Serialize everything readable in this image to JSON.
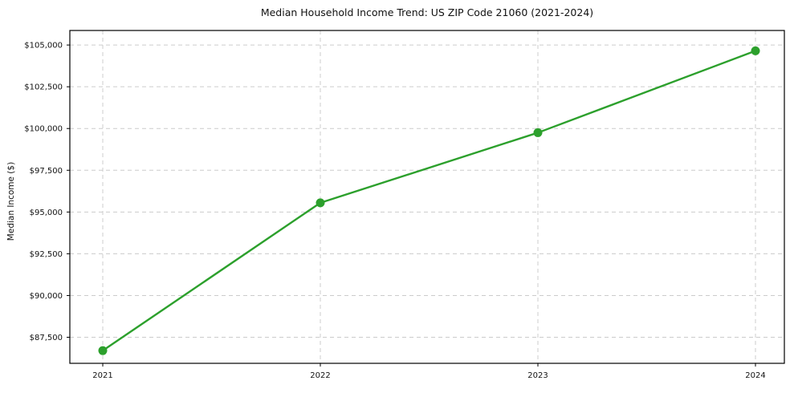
{
  "chart_data": {
    "type": "line",
    "title": "Median Household Income Trend: US ZIP Code 21060 (2021-2024)",
    "xlabel": "",
    "ylabel": "Median Income ($)",
    "categories": [
      "2021",
      "2022",
      "2023",
      "2024"
    ],
    "values": [
      86700,
      95550,
      99750,
      104650
    ],
    "y_ticks": [
      87500,
      90000,
      92500,
      95000,
      97500,
      100000,
      102500,
      105000
    ],
    "y_tick_labels": [
      "$87,500",
      "$90,000",
      "$92,500",
      "$95,000",
      "$97,500",
      "$100,000",
      "$102,500",
      "$105,000"
    ],
    "ylim": [
      85940,
      105870
    ],
    "grid": {
      "visible": true,
      "style": "dashed",
      "axes": "both",
      "color": "#cccccc"
    },
    "legend_position": "none",
    "line_color": "#2ca02c",
    "marker": "circle",
    "spine_color": "#000000",
    "tick_label_color": "#111111"
  }
}
